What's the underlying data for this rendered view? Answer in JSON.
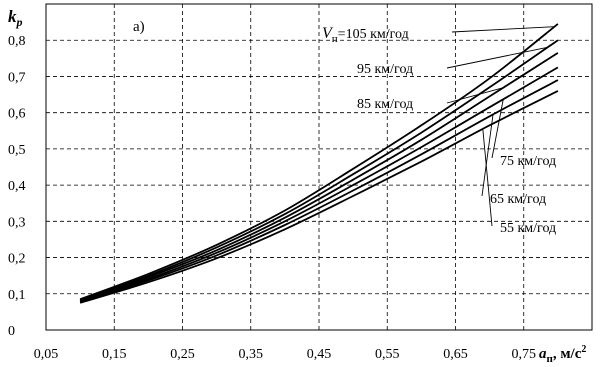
{
  "chart_data": {
    "type": "line",
    "panel_label": "а)",
    "xlabel_main": "a",
    "xlabel_sub": "п",
    "xlabel_unit": ", м/с",
    "xlabel_sup": "2",
    "ylabel_main": "k",
    "ylabel_sub": "p",
    "xlim": [
      0.05,
      0.85
    ],
    "ylim": [
      0,
      0.9
    ],
    "grid": true,
    "x_ticks": [
      0.05,
      0.15,
      0.25,
      0.35,
      0.45,
      0.55,
      0.65,
      0.75
    ],
    "x_tick_labels": [
      "0,05",
      "0,15",
      "0,25",
      "0,35",
      "0,45",
      "0,55",
      "0,65",
      "0,75"
    ],
    "x_grid": [
      0.05,
      0.15,
      0.25,
      0.35,
      0.45,
      0.55,
      0.65,
      0.75,
      0.85
    ],
    "y_ticks": [
      0,
      0.1,
      0.2,
      0.3,
      0.4,
      0.5,
      0.6,
      0.7,
      0.8
    ],
    "y_tick_labels": [
      "0",
      "0,1",
      "0,2",
      "0,3",
      "0,4",
      "0,5",
      "0,6",
      "0,7",
      "0,8"
    ],
    "x": [
      0.1,
      0.2,
      0.3,
      0.4,
      0.5,
      0.6,
      0.7,
      0.8
    ],
    "series": [
      {
        "name": "V_п=105 км/год",
        "values": [
          0.085,
          0.155,
          0.235,
          0.33,
          0.445,
          0.565,
          0.695,
          0.845
        ]
      },
      {
        "name": "95 км/год",
        "values": [
          0.083,
          0.15,
          0.228,
          0.32,
          0.43,
          0.545,
          0.67,
          0.8
        ]
      },
      {
        "name": "85 км/год",
        "values": [
          0.081,
          0.146,
          0.22,
          0.31,
          0.415,
          0.525,
          0.645,
          0.765
        ]
      },
      {
        "name": "75 км/год",
        "values": [
          0.079,
          0.141,
          0.213,
          0.3,
          0.4,
          0.505,
          0.615,
          0.725
        ]
      },
      {
        "name": "65 км/год",
        "values": [
          0.077,
          0.137,
          0.206,
          0.29,
          0.385,
          0.485,
          0.59,
          0.69
        ]
      },
      {
        "name": "55 км/год",
        "values": [
          0.075,
          0.132,
          0.198,
          0.278,
          0.37,
          0.465,
          0.565,
          0.66
        ]
      }
    ],
    "labels": [
      {
        "text_main": "V",
        "text_sub": "п",
        "text_rest": "=105 км/год",
        "series": 0
      },
      {
        "text": "95 км/год",
        "series": 1
      },
      {
        "text": "85 км/год",
        "series": 2
      },
      {
        "text": "75 км/год",
        "series": 3
      },
      {
        "text": "65 км/год",
        "series": 4
      },
      {
        "text": "55 км/год",
        "series": 5
      }
    ]
  }
}
